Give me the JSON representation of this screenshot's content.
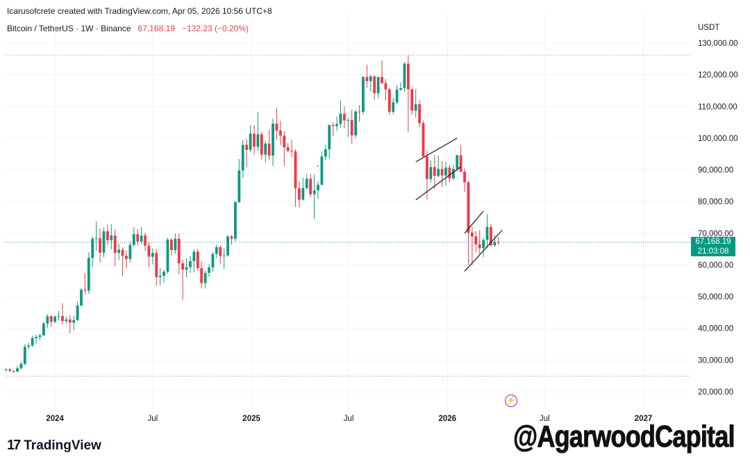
{
  "header": {
    "credit": "Icarusofcrete created with TradingView.com, Apr 05, 2026 10:56 UTC+8",
    "symbol": "Bitcoin / TetherUS · 1W · Binance",
    "last_price": "67,168.19",
    "change": "−132.23 (−0.20%)"
  },
  "currency_label": "USDT",
  "price_tag": {
    "price": "67,168.19",
    "countdown": "21:03:08"
  },
  "colors": {
    "up": "#089981",
    "down": "#f23645",
    "grid": "#f0f3fa",
    "price_line": "#089981",
    "channel": "#131722"
  },
  "logo": {
    "text": "TradingView"
  },
  "watermark": "@AgarwoodCapital",
  "icons": {
    "event": "lightning-bolt-icon",
    "logo": "tradingview-logo-icon"
  },
  "chart_data": {
    "type": "candlestick",
    "timeframe": "1W",
    "ylim": [
      16000,
      132000
    ],
    "y_ticks": [
      20000,
      30000,
      40000,
      50000,
      60000,
      70000,
      80000,
      90000,
      100000,
      110000,
      120000,
      130000
    ],
    "y_tick_labels": [
      "20,000.00",
      "30,000.00",
      "40,000.00",
      "50,000.00",
      "60,000.00",
      "70,000.00",
      "80,000.00",
      "90,000.00",
      "100,000.00",
      "110,000.00",
      "120,000.00",
      "130,000.00"
    ],
    "x_start": "2023-10-01",
    "x_end": "2027-03-28",
    "x_ticks": [
      {
        "date": "2024-01-01",
        "label": "2024",
        "bold": true
      },
      {
        "date": "2024-07-01",
        "label": "Jul",
        "bold": false
      },
      {
        "date": "2025-01-01",
        "label": "2025",
        "bold": true
      },
      {
        "date": "2025-07-01",
        "label": "Jul",
        "bold": false
      },
      {
        "date": "2026-01-01",
        "label": "2026",
        "bold": true
      },
      {
        "date": "2026-07-01",
        "label": "Jul",
        "bold": false
      },
      {
        "date": "2027-01-01",
        "label": "2027",
        "bold": true
      }
    ],
    "reference_lines": [
      126200,
      24900
    ],
    "current_price": 67168.19,
    "candles_start": "2023-10-02",
    "ohlc": [
      [
        26900,
        27500,
        26500,
        27000
      ],
      [
        27000,
        27600,
        26200,
        26600
      ],
      [
        26600,
        26800,
        25900,
        26400
      ],
      [
        26400,
        28100,
        26100,
        27400
      ],
      [
        27400,
        29400,
        27000,
        28800
      ],
      [
        28800,
        35000,
        28300,
        34200
      ],
      [
        34200,
        35400,
        33400,
        34600
      ],
      [
        34600,
        37700,
        34100,
        36900
      ],
      [
        36900,
        38000,
        35100,
        37300
      ],
      [
        37300,
        38200,
        36200,
        37800
      ],
      [
        37800,
        42100,
        37600,
        41500
      ],
      [
        41500,
        44500,
        40200,
        43800
      ],
      [
        43800,
        44200,
        40500,
        42100
      ],
      [
        42100,
        44100,
        41600,
        43700
      ],
      [
        43700,
        45500,
        42500,
        43900
      ],
      [
        43900,
        47900,
        41200,
        42300
      ],
      [
        42300,
        43700,
        41500,
        42800
      ],
      [
        42800,
        44200,
        38500,
        41800
      ],
      [
        41800,
        43900,
        39400,
        42600
      ],
      [
        42600,
        48500,
        42300,
        47200
      ],
      [
        47200,
        52800,
        46900,
        52200
      ],
      [
        52200,
        57500,
        50600,
        51900
      ],
      [
        51900,
        64000,
        50900,
        62200
      ],
      [
        62200,
        69000,
        59200,
        68300
      ],
      [
        68300,
        73800,
        64500,
        68400
      ],
      [
        68400,
        71500,
        60800,
        63900
      ],
      [
        63900,
        71800,
        62400,
        70600
      ],
      [
        70600,
        72700,
        66200,
        67800
      ],
      [
        67800,
        72800,
        65000,
        69300
      ],
      [
        69300,
        71200,
        59600,
        63800
      ],
      [
        63800,
        66700,
        61500,
        64800
      ],
      [
        64800,
        65500,
        56500,
        62900
      ],
      [
        62900,
        64600,
        59000,
        61900
      ],
      [
        61900,
        67200,
        60800,
        66300
      ],
      [
        66300,
        71900,
        65800,
        69700
      ],
      [
        69700,
        71400,
        66100,
        67400
      ],
      [
        67400,
        71900,
        66600,
        69300
      ],
      [
        69300,
        70200,
        64500,
        66100
      ],
      [
        66100,
        67200,
        59300,
        62600
      ],
      [
        62600,
        65200,
        60200,
        63800
      ],
      [
        63800,
        64900,
        53500,
        56200
      ],
      [
        56200,
        59000,
        53600,
        56600
      ],
      [
        56600,
        58500,
        54500,
        57900
      ],
      [
        57900,
        68500,
        57200,
        68000
      ],
      [
        68000,
        68500,
        63000,
        64700
      ],
      [
        64700,
        70000,
        63500,
        68300
      ],
      [
        68300,
        69900,
        57100,
        60500
      ],
      [
        60500,
        61700,
        49000,
        58500
      ],
      [
        58500,
        62100,
        56100,
        59300
      ],
      [
        59300,
        62800,
        57500,
        61200
      ],
      [
        61200,
        65000,
        57600,
        64200
      ],
      [
        64200,
        65100,
        58200,
        59000
      ],
      [
        59000,
        61200,
        52600,
        54300
      ],
      [
        54300,
        58200,
        52600,
        57500
      ],
      [
        57500,
        60200,
        56300,
        59200
      ],
      [
        59200,
        64000,
        57800,
        63500
      ],
      [
        63500,
        66500,
        62200,
        65600
      ],
      [
        65600,
        66200,
        60200,
        62800
      ],
      [
        62800,
        65400,
        58800,
        63000
      ],
      [
        63000,
        69400,
        62600,
        69000
      ],
      [
        69000,
        69500,
        66500,
        68300
      ],
      [
        68300,
        80100,
        67500,
        79800
      ],
      [
        79800,
        93400,
        79600,
        89800
      ],
      [
        89800,
        99500,
        87400,
        97900
      ],
      [
        97900,
        99800,
        90800,
        96300
      ],
      [
        96300,
        104000,
        95600,
        101400
      ],
      [
        101400,
        104100,
        94700,
        97300
      ],
      [
        97300,
        108300,
        96000,
        101200
      ],
      [
        101200,
        102000,
        93300,
        94800
      ],
      [
        94800,
        99100,
        92200,
        98300
      ],
      [
        98300,
        102700,
        93200,
        94500
      ],
      [
        94500,
        106200,
        91200,
        104600
      ],
      [
        104600,
        109600,
        99600,
        102400
      ],
      [
        102400,
        105500,
        97800,
        100800
      ],
      [
        100800,
        102200,
        91200,
        97100
      ],
      [
        97100,
        98500,
        95500,
        96000
      ],
      [
        96000,
        99500,
        94000,
        95800
      ],
      [
        95800,
        96500,
        78300,
        84200
      ],
      [
        84200,
        86400,
        78200,
        80600
      ],
      [
        80600,
        87500,
        80300,
        84300
      ],
      [
        84300,
        88700,
        83800,
        87200
      ],
      [
        87200,
        88800,
        81300,
        82300
      ],
      [
        82300,
        88500,
        74500,
        83500
      ],
      [
        83500,
        86400,
        80800,
        85300
      ],
      [
        85300,
        95700,
        85100,
        94200
      ],
      [
        94200,
        97900,
        93100,
        96500
      ],
      [
        96500,
        104300,
        93500,
        104100
      ],
      [
        104100,
        105000,
        100700,
        103800
      ],
      [
        103800,
        106800,
        102300,
        104500
      ],
      [
        104500,
        112000,
        103300,
        107700
      ],
      [
        107700,
        110000,
        103100,
        105600
      ],
      [
        105600,
        106400,
        100400,
        105700
      ],
      [
        105700,
        109000,
        98200,
        100900
      ],
      [
        100900,
        108900,
        100000,
        108400
      ],
      [
        108400,
        110400,
        105200,
        108300
      ],
      [
        108300,
        119500,
        107500,
        119300
      ],
      [
        119300,
        123200,
        115900,
        118000
      ],
      [
        118000,
        120000,
        114600,
        119500
      ],
      [
        119500,
        119800,
        112000,
        114200
      ],
      [
        114200,
        119300,
        112600,
        119300
      ],
      [
        119300,
        124500,
        116900,
        117400
      ],
      [
        117400,
        118600,
        111900,
        115400
      ],
      [
        115400,
        115800,
        107300,
        108300
      ],
      [
        108300,
        112700,
        107500,
        111300
      ],
      [
        111300,
        116800,
        110700,
        115300
      ],
      [
        115300,
        117600,
        114900,
        115800
      ],
      [
        115800,
        124000,
        114600,
        123500
      ],
      [
        123500,
        126200,
        102000,
        115400
      ],
      [
        115400,
        116000,
        107400,
        108700
      ],
      [
        108700,
        115500,
        106600,
        110700
      ],
      [
        110700,
        112000,
        103500,
        104700
      ],
      [
        104700,
        105500,
        94300,
        94200
      ],
      [
        94200,
        96000,
        80600,
        87100
      ],
      [
        87100,
        93000,
        86000,
        90900
      ],
      [
        90900,
        94600,
        84000,
        88100
      ],
      [
        88100,
        94500,
        87600,
        90300
      ],
      [
        90300,
        92800,
        84600,
        88200
      ],
      [
        88200,
        92500,
        85000,
        90700
      ],
      [
        90700,
        91500,
        86000,
        87300
      ],
      [
        87300,
        91700,
        86800,
        90300
      ],
      [
        90300,
        94800,
        89500,
        94600
      ],
      [
        94600,
        97900,
        89700,
        89400
      ],
      [
        89400,
        90500,
        83100,
        86100
      ],
      [
        86100,
        86600,
        60000,
        70200
      ],
      [
        70200,
        72200,
        60000,
        69000
      ],
      [
        69000,
        70600,
        64000,
        66500
      ],
      [
        66500,
        71000,
        63500,
        65300
      ],
      [
        65300,
        68600,
        62500,
        67900
      ],
      [
        67900,
        76000,
        65300,
        72000
      ],
      [
        72000,
        73000,
        65800,
        66200
      ],
      [
        66200,
        69300,
        65700,
        67300
      ],
      [
        67300,
        68900,
        66300,
        67168
      ]
    ],
    "stray_points": [
      {
        "date": "2025-05-04",
        "value": 91200
      }
    ],
    "channels": [
      {
        "from": [
          "2025-11-03",
          92500
        ],
        "to": [
          "2026-01-19",
          100000
        ]
      },
      {
        "from": [
          "2025-11-03",
          80500
        ],
        "to": [
          "2026-01-26",
          91000
        ]
      },
      {
        "from": [
          "2026-02-02",
          70000
        ],
        "to": [
          "2026-03-09",
          77000
        ]
      },
      {
        "from": [
          "2026-02-02",
          58000
        ],
        "to": [
          "2026-04-13",
          71000
        ]
      }
    ],
    "events": [
      {
        "date": "2026-03-26",
        "type": "lightning-bolt-icon"
      }
    ]
  }
}
